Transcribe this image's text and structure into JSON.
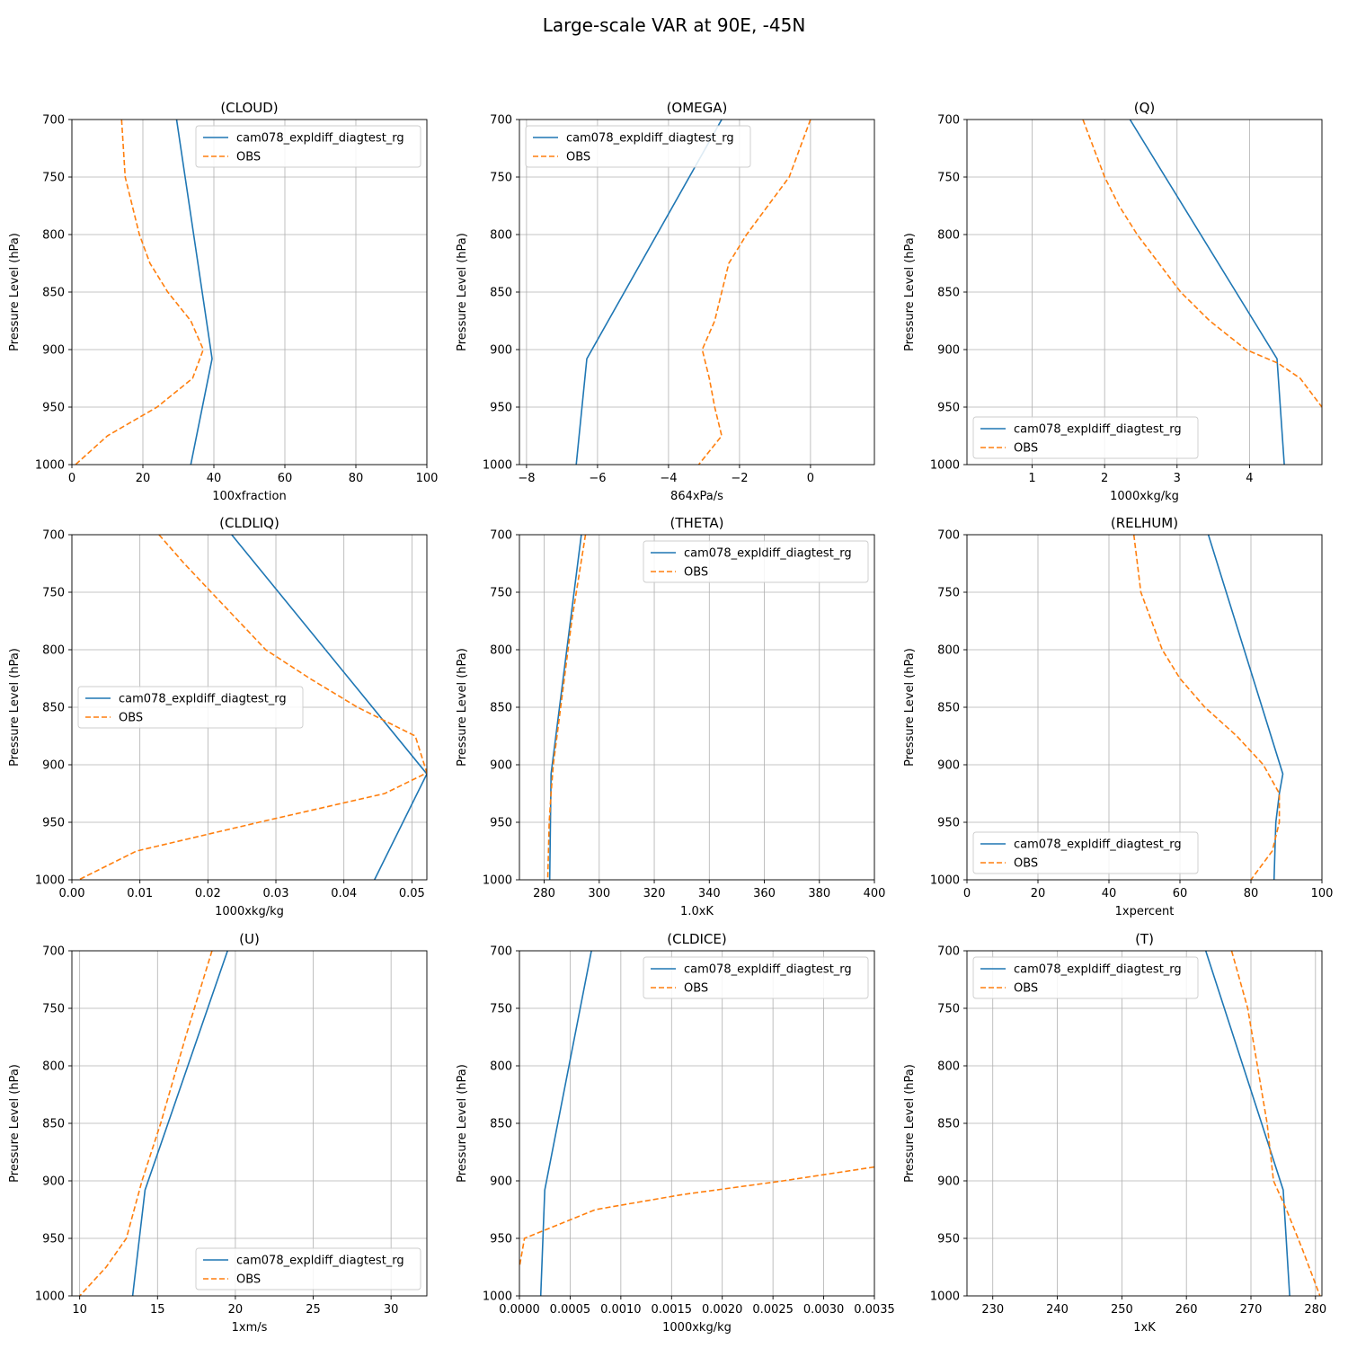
{
  "figure": {
    "title": "Large-scale VAR at 90E, -45N",
    "ylabel": "Pressure Level (hPa)",
    "yticks": [
      700,
      750,
      800,
      850,
      900,
      950,
      1000
    ],
    "ylim": [
      1000,
      700
    ],
    "grid": true,
    "series_colors": {
      "model": "#1f77b4",
      "obs": "#ff7f0e"
    }
  },
  "chart_data": [
    {
      "type": "line",
      "title": "(CLOUD)",
      "xlabel": "100xfraction",
      "ylabel": "Pressure Level (hPa)",
      "xlim": [
        0,
        100
      ],
      "xticks": [
        0,
        20,
        40,
        60,
        80,
        100
      ],
      "ylim": [
        1000,
        700
      ],
      "legend": "upper right",
      "series": [
        {
          "name": "cam078_expldiff_diagtest_rg",
          "style": "solid",
          "color": "#1f77b4",
          "x": [
            29.5,
            39.5,
            33.5
          ],
          "y": [
            700,
            908,
            1000
          ]
        },
        {
          "name": "OBS",
          "style": "dashed",
          "color": "#ff7f0e",
          "x": [
            14,
            15,
            17,
            19,
            22,
            27,
            33.5,
            37,
            34,
            24,
            10,
            1
          ],
          "y": [
            700,
            750,
            775,
            800,
            825,
            850,
            875,
            900,
            925,
            950,
            975,
            1000
          ]
        }
      ]
    },
    {
      "type": "line",
      "title": "(OMEGA)",
      "xlabel": "864xPa/s",
      "ylabel": "Pressure Level (hPa)",
      "xlim": [
        -8.2,
        1.8
      ],
      "xticks": [
        -8,
        -6,
        -4,
        -2,
        0
      ],
      "ylim": [
        1000,
        700
      ],
      "legend": "upper left",
      "series": [
        {
          "name": "cam078_expldiff_diagtest_rg",
          "style": "solid",
          "color": "#1f77b4",
          "x": [
            -2.5,
            -6.3,
            -6.6
          ],
          "y": [
            700,
            908,
            1000
          ]
        },
        {
          "name": "OBS",
          "style": "dashed",
          "color": "#ff7f0e",
          "x": [
            0,
            -0.6,
            -1.2,
            -1.8,
            -2.3,
            -2.5,
            -2.7,
            -3.05,
            -2.85,
            -2.7,
            -2.5,
            -3.15
          ],
          "y": [
            700,
            750,
            775,
            800,
            825,
            850,
            875,
            900,
            925,
            950,
            975,
            1000
          ]
        }
      ]
    },
    {
      "type": "line",
      "title": "(Q)",
      "xlabel": "1000xkg/kg",
      "ylabel": "Pressure Level (hPa)",
      "xlim": [
        0.1,
        5.0
      ],
      "xticks": [
        1,
        2,
        3,
        4
      ],
      "ylim": [
        1000,
        700
      ],
      "legend": "lower left",
      "series": [
        {
          "name": "cam078_expldiff_diagtest_rg",
          "style": "solid",
          "color": "#1f77b4",
          "x": [
            2.35,
            4.38,
            4.48
          ],
          "y": [
            700,
            908,
            1000
          ]
        },
        {
          "name": "OBS",
          "style": "dashed",
          "color": "#ff7f0e",
          "x": [
            1.7,
            1.85,
            2.0,
            2.2,
            2.45,
            2.75,
            3.05,
            3.45,
            3.95,
            4.4,
            4.7,
            5.0
          ],
          "y": [
            700,
            725,
            750,
            775,
            800,
            825,
            850,
            875,
            900,
            912,
            925,
            950
          ]
        }
      ]
    },
    {
      "type": "line",
      "title": "(CLDLIQ)",
      "xlabel": "1000xkg/kg",
      "ylabel": "Pressure Level (hPa)",
      "xlim": [
        0.0,
        0.0522
      ],
      "xticks": [
        0.0,
        0.01,
        0.02,
        0.03,
        0.04,
        0.05
      ],
      "ylim": [
        1000,
        700
      ],
      "legend": "center left",
      "series": [
        {
          "name": "cam078_expldiff_diagtest_rg",
          "style": "solid",
          "color": "#1f77b4",
          "x": [
            0.0235,
            0.0522,
            0.0445
          ],
          "y": [
            700,
            908,
            1000
          ]
        },
        {
          "name": "OBS",
          "style": "dashed",
          "color": "#ff7f0e",
          "x": [
            0.0128,
            0.0165,
            0.0205,
            0.0245,
            0.0285,
            0.035,
            0.042,
            0.0505,
            0.0522,
            0.046,
            0.0275,
            0.0095,
            0.001
          ],
          "y": [
            700,
            725,
            750,
            775,
            800,
            825,
            850,
            875,
            907,
            925,
            950,
            975,
            1000
          ]
        }
      ]
    },
    {
      "type": "line",
      "title": "(THETA)",
      "xlabel": "1.0xK",
      "ylabel": "Pressure Level (hPa)",
      "xlim": [
        271,
        400
      ],
      "xticks": [
        280,
        300,
        320,
        340,
        360,
        380,
        400
      ],
      "ylim": [
        1000,
        700
      ],
      "legend": "upper right",
      "series": [
        {
          "name": "cam078_expldiff_diagtest_rg",
          "style": "solid",
          "color": "#1f77b4",
          "x": [
            293.5,
            282.5,
            282.0
          ],
          "y": [
            700,
            908,
            1000
          ]
        },
        {
          "name": "OBS",
          "style": "dashed",
          "color": "#ff7f0e",
          "x": [
            295,
            290,
            286,
            283.3,
            282.5,
            281.8,
            281.3
          ],
          "y": [
            700,
            775,
            850,
            900,
            925,
            950,
            1000
          ]
        }
      ]
    },
    {
      "type": "line",
      "title": "(RELHUM)",
      "xlabel": "1xpercent",
      "ylabel": "Pressure Level (hPa)",
      "xlim": [
        0,
        100
      ],
      "xticks": [
        0,
        20,
        40,
        60,
        80,
        100
      ],
      "ylim": [
        1000,
        700
      ],
      "legend": "lower left",
      "series": [
        {
          "name": "cam078_expldiff_diagtest_rg",
          "style": "solid",
          "color": "#1f77b4",
          "x": [
            68,
            89,
            88,
            87,
            86.5
          ],
          "y": [
            700,
            908,
            925,
            950,
            1000
          ]
        },
        {
          "name": "OBS",
          "style": "dashed",
          "color": "#ff7f0e",
          "x": [
            47,
            49,
            52,
            55,
            60,
            67,
            76,
            83.5,
            88,
            88,
            86,
            80
          ],
          "y": [
            700,
            750,
            775,
            800,
            825,
            850,
            875,
            900,
            925,
            950,
            975,
            1000
          ]
        }
      ]
    },
    {
      "type": "line",
      "title": "(U)",
      "xlabel": "1xm/s",
      "ylabel": "Pressure Level (hPa)",
      "xlim": [
        9.5,
        32.3
      ],
      "xticks": [
        10,
        15,
        20,
        25,
        30
      ],
      "ylim": [
        1000,
        700
      ],
      "legend": "lower right",
      "series": [
        {
          "name": "cam078_expldiff_diagtest_rg",
          "style": "solid",
          "color": "#1f77b4",
          "x": [
            19.5,
            14.2,
            13.4
          ],
          "y": [
            700,
            908,
            1000
          ]
        },
        {
          "name": "OBS",
          "style": "dashed",
          "color": "#ff7f0e",
          "x": [
            18.5,
            16.8,
            15.2,
            14,
            13,
            11.7,
            10
          ],
          "y": [
            700,
            775,
            850,
            900,
            950,
            975,
            1000
          ]
        }
      ]
    },
    {
      "type": "line",
      "title": "(CLDICE)",
      "xlabel": "1000xkg/kg",
      "ylabel": "Pressure Level (hPa)",
      "xlim": [
        0.0,
        0.0035
      ],
      "xticks": [
        0.0,
        0.0005,
        0.001,
        0.0015,
        0.002,
        0.0025,
        0.003,
        0.0035
      ],
      "ylim": [
        1000,
        700
      ],
      "legend": "upper right",
      "series": [
        {
          "name": "cam078_expldiff_diagtest_rg",
          "style": "solid",
          "color": "#1f77b4",
          "x": [
            0.00071,
            0.00025,
            0.00021
          ],
          "y": [
            700,
            908,
            1000
          ]
        },
        {
          "name": "OBS",
          "style": "dashed",
          "color": "#ff7f0e",
          "x": [
            0.0035,
            0.0026,
            0.0016,
            0.00075,
            5e-05,
            0.0
          ],
          "y": [
            888,
            900,
            912,
            925,
            950,
            975
          ]
        }
      ]
    },
    {
      "type": "line",
      "title": "(T)",
      "xlabel": "1xK",
      "ylabel": "Pressure Level (hPa)",
      "xlim": [
        226,
        281
      ],
      "xticks": [
        230,
        240,
        250,
        260,
        270,
        280
      ],
      "ylim": [
        1000,
        700
      ],
      "legend": "upper left",
      "series": [
        {
          "name": "cam078_expldiff_diagtest_rg",
          "style": "solid",
          "color": "#1f77b4",
          "x": [
            263,
            275,
            276
          ],
          "y": [
            700,
            908,
            1000
          ]
        },
        {
          "name": "OBS",
          "style": "dashed",
          "color": "#ff7f0e",
          "x": [
            267,
            269.5,
            271,
            272.5,
            273.5,
            275.5,
            278,
            280.7
          ],
          "y": [
            700,
            750,
            800,
            850,
            900,
            925,
            960,
            1000
          ]
        }
      ]
    }
  ]
}
